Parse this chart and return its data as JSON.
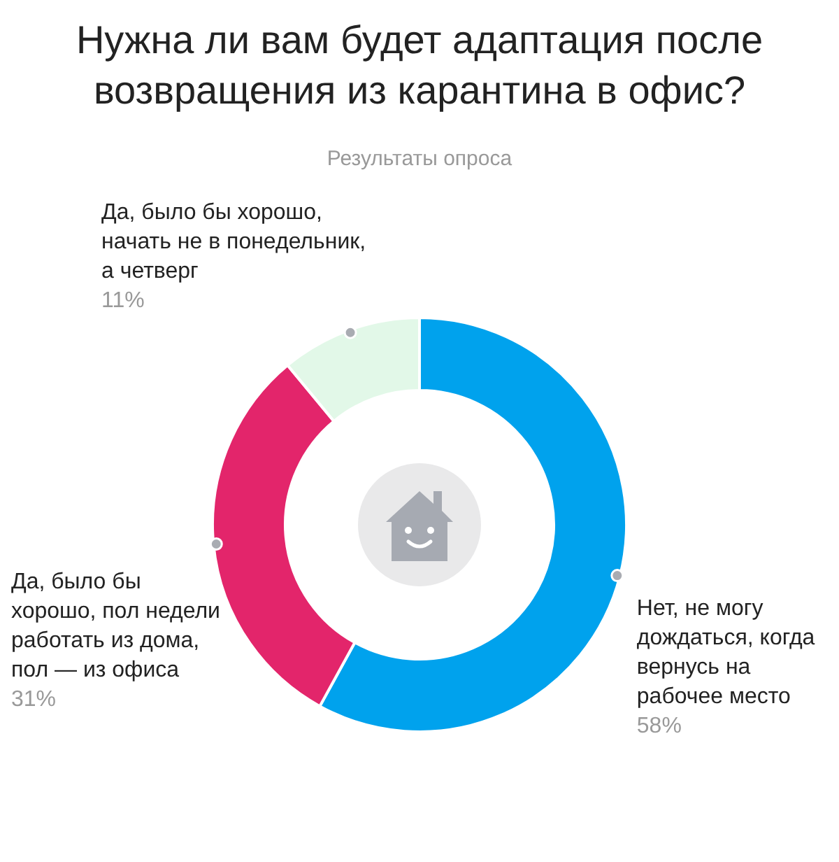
{
  "chart_data": {
    "type": "donut",
    "title": "Нужна ли вам будет адаптация после возвращения из карантина в офис?",
    "subtitle": "Результаты опроса",
    "categories": [
      "Нет, не могу дождаться, когда вернусь на рабочее место",
      "Да, было бы хорошо, пол недели работать из дома, пол — из офиса",
      "Да, было бы хорошо, начать не в понедельник, а четверг"
    ],
    "values": [
      58,
      31,
      11
    ],
    "colors": [
      "#00a2ed",
      "#e3256b",
      "#e2f8e8"
    ],
    "value_labels": [
      "58%",
      "31%",
      "11%"
    ]
  }
}
